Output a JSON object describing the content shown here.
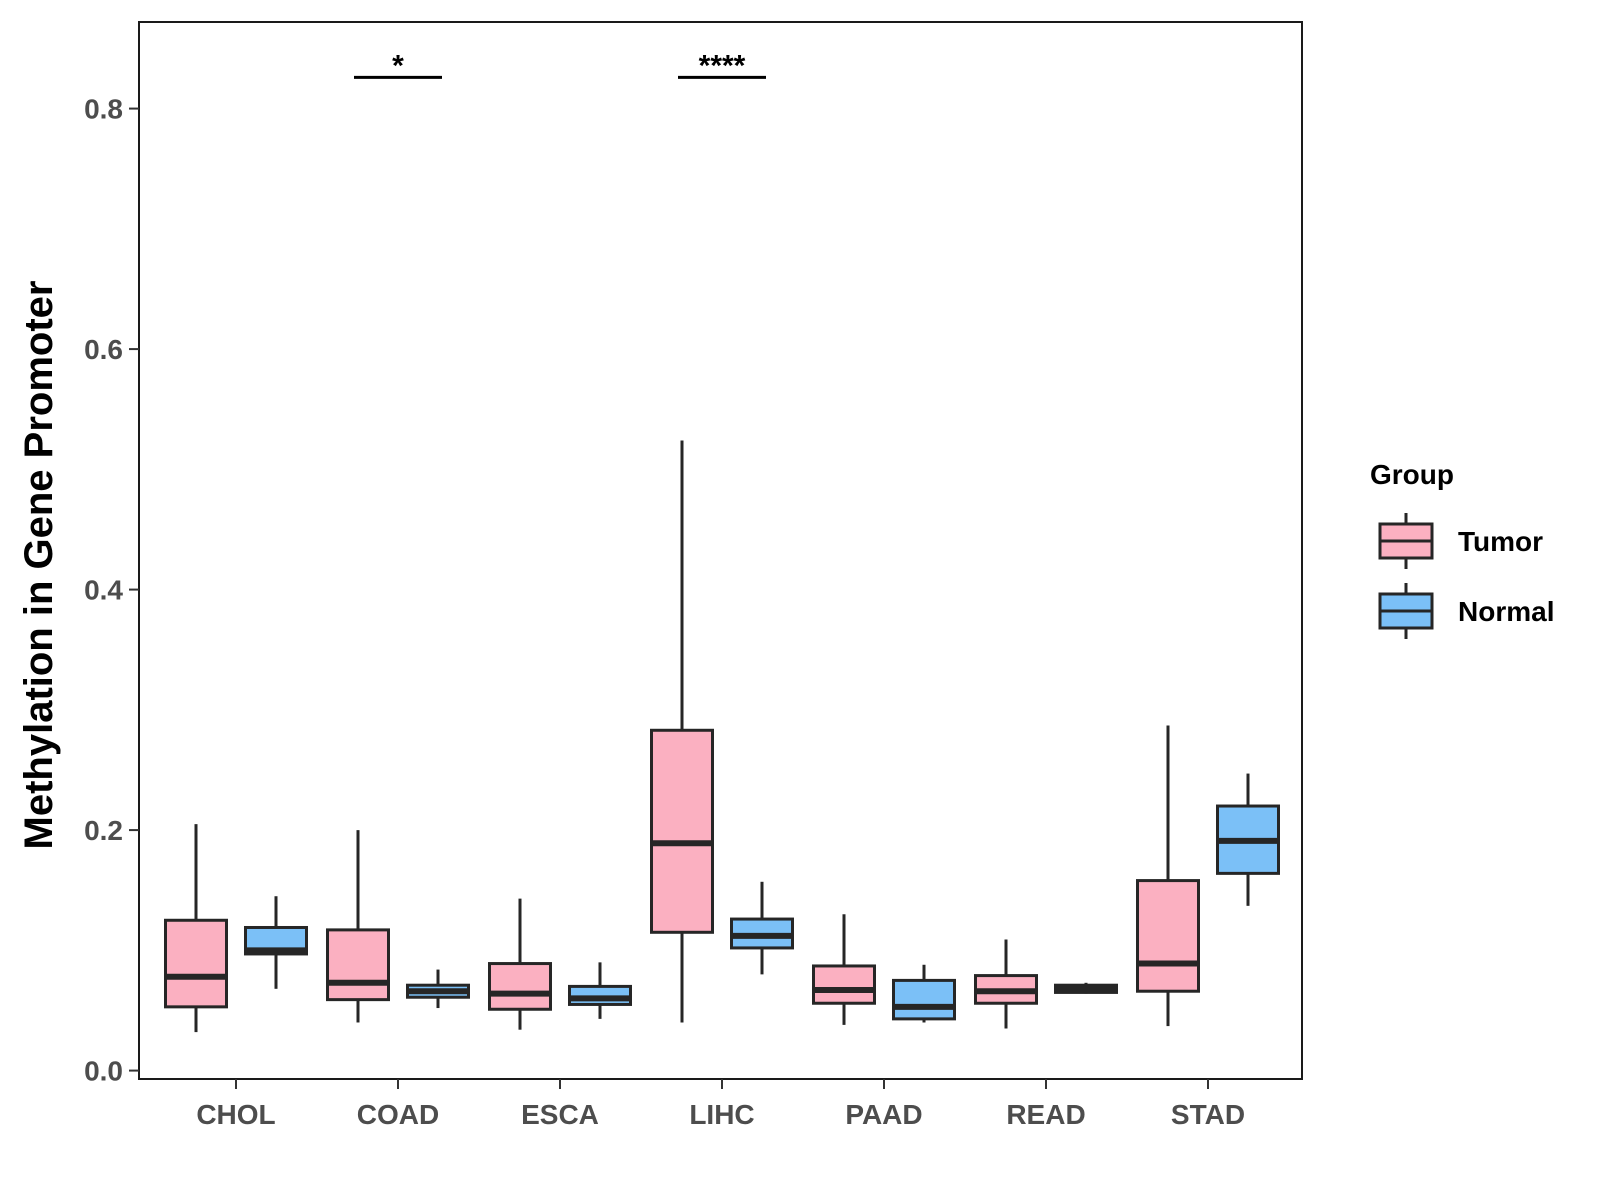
{
  "chart_data": {
    "type": "boxplot",
    "title": "",
    "xlabel": "",
    "ylabel": "Methylation in Gene Promoter",
    "ylim": [
      -0.007,
      0.872
    ],
    "yticks": [
      0.0,
      0.2,
      0.4,
      0.6,
      0.8
    ],
    "ytick_labels": [
      "0.0",
      "0.2",
      "0.4",
      "0.6",
      "0.8"
    ],
    "grid": false,
    "categories": [
      "CHOL",
      "COAD",
      "ESCA",
      "LIHC",
      "PAAD",
      "READ",
      "STAD"
    ],
    "legend": {
      "title": "Group",
      "position": "right",
      "entries": [
        {
          "name": "Tumor",
          "color": "#fbb0c1"
        },
        {
          "name": "Normal",
          "color": "#7bc0f7"
        }
      ]
    },
    "series": [
      {
        "name": "Tumor",
        "color": "#fbb0c1",
        "boxes": [
          {
            "category": "CHOL",
            "whisker_low": 0.032,
            "q1": 0.053,
            "median": 0.078,
            "q3": 0.125,
            "whisker_high": 0.205
          },
          {
            "category": "COAD",
            "whisker_low": 0.04,
            "q1": 0.059,
            "median": 0.073,
            "q3": 0.117,
            "whisker_high": 0.2
          },
          {
            "category": "ESCA",
            "whisker_low": 0.034,
            "q1": 0.051,
            "median": 0.064,
            "q3": 0.089,
            "whisker_high": 0.143
          },
          {
            "category": "LIHC",
            "whisker_low": 0.04,
            "q1": 0.115,
            "median": 0.189,
            "q3": 0.283,
            "whisker_high": 0.524
          },
          {
            "category": "PAAD",
            "whisker_low": 0.038,
            "q1": 0.056,
            "median": 0.067,
            "q3": 0.087,
            "whisker_high": 0.13
          },
          {
            "category": "READ",
            "whisker_low": 0.035,
            "q1": 0.056,
            "median": 0.066,
            "q3": 0.079,
            "whisker_high": 0.109
          },
          {
            "category": "STAD",
            "whisker_low": 0.037,
            "q1": 0.066,
            "median": 0.089,
            "q3": 0.158,
            "whisker_high": 0.287
          }
        ]
      },
      {
        "name": "Normal",
        "color": "#7bc0f7",
        "boxes": [
          {
            "category": "CHOL",
            "whisker_low": 0.068,
            "q1": 0.097,
            "median": 0.1,
            "q3": 0.119,
            "whisker_high": 0.145
          },
          {
            "category": "COAD",
            "whisker_low": 0.052,
            "q1": 0.061,
            "median": 0.066,
            "q3": 0.071,
            "whisker_high": 0.084
          },
          {
            "category": "ESCA",
            "whisker_low": 0.043,
            "q1": 0.055,
            "median": 0.06,
            "q3": 0.07,
            "whisker_high": 0.09
          },
          {
            "category": "LIHC",
            "whisker_low": 0.08,
            "q1": 0.102,
            "median": 0.112,
            "q3": 0.126,
            "whisker_high": 0.157
          },
          {
            "category": "PAAD",
            "whisker_low": 0.04,
            "q1": 0.043,
            "median": 0.053,
            "q3": 0.075,
            "whisker_high": 0.088
          },
          {
            "category": "READ",
            "whisker_low": 0.064,
            "q1": 0.065,
            "median": 0.068,
            "q3": 0.071,
            "whisker_high": 0.073
          },
          {
            "category": "STAD",
            "whisker_low": 0.137,
            "q1": 0.164,
            "median": 0.191,
            "q3": 0.22,
            "whisker_high": 0.247
          }
        ]
      }
    ],
    "annotations": [
      {
        "category": "COAD",
        "label": "*",
        "y": 0.826
      },
      {
        "category": "LIHC",
        "label": "****",
        "y": 0.826
      }
    ]
  }
}
